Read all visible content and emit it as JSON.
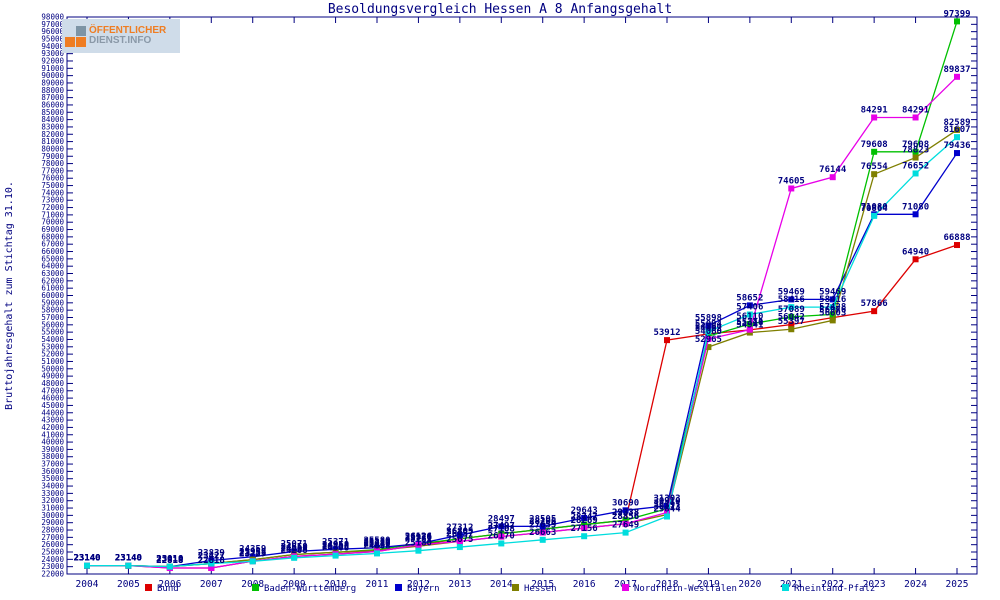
{
  "header": {
    "logo_line1": "ÖFFENTLICHER",
    "logo_line2": "DIENST.INFO"
  },
  "chart_data": {
    "type": "line",
    "title": "Besoldungsvergleich Hessen A 8 Anfangsgehalt",
    "xlabel": "",
    "ylabel": "Bruttojahresgehalt zum Stichtag 31.10.",
    "ylim": [
      22000,
      98000
    ],
    "ytick_step": 1000,
    "grid": false,
    "legend_position": "bottom",
    "point_labels": true,
    "x": [
      2004,
      2005,
      2006,
      2007,
      2008,
      2009,
      2010,
      2011,
      2012,
      2013,
      2014,
      2015,
      2016,
      2017,
      2018,
      2019,
      2020,
      2021,
      2022,
      2023,
      2024,
      2025
    ],
    "series": [
      {
        "name": "Bund",
        "color": "#dd0000",
        "values": [
          23140,
          23140,
          22818,
          22818,
          23753,
          24408,
          24708,
          25080,
          25976,
          26805,
          27497,
          28106,
          28747,
          29338,
          53912,
          54764,
          55310,
          56042,
          56976,
          57866,
          64940,
          66888
        ]
      },
      {
        "name": "Baden-Württemberg",
        "color": "#00c000",
        "values": [
          23140,
          23140,
          23010,
          23427,
          23958,
          24658,
          24958,
          25330,
          26126,
          26805,
          27497,
          28106,
          28747,
          29338,
          30910,
          54462,
          56110,
          57089,
          57428,
          79608,
          79608,
          97399
        ]
      },
      {
        "name": "Bayern",
        "color": "#0000cc",
        "values": [
          23140,
          23140,
          23010,
          23839,
          24359,
          25071,
          25371,
          25580,
          26126,
          27312,
          28497,
          28505,
          29643,
          30690,
          31303,
          55898,
          58652,
          59469,
          59469,
          71080,
          71080,
          79436
        ]
      },
      {
        "name": "Hessen",
        "color": "#7f7f00",
        "values": [
          23140,
          23140,
          23010,
          23427,
          23958,
          24658,
          24958,
          25217,
          25781,
          26457,
          27108,
          27659,
          28269,
          28856,
          30113,
          52965,
          54941,
          55397,
          56603,
          76554,
          78823,
          82589
        ]
      },
      {
        "name": "Nordrhein-Westfalen",
        "color": "#e800e8",
        "values": [
          23140,
          23140,
          22818,
          22818,
          23753,
          24408,
          24708,
          25080,
          25976,
          26457,
          27108,
          27659,
          28269,
          28856,
          30397,
          54060,
          55341,
          74605,
          76144,
          84291,
          84291,
          89837
        ]
      },
      {
        "name": "Rheinland-Pfalz",
        "color": "#00dddd",
        "values": [
          23140,
          23140,
          23010,
          23427,
          23727,
          24208,
          24508,
          24808,
          25180,
          25675,
          26170,
          26663,
          27156,
          27649,
          29844,
          55094,
          57406,
          58416,
          58416,
          70864,
          76652,
          81607
        ]
      }
    ]
  },
  "colors": {
    "axis": "#000080",
    "tick_text": "#000080",
    "point_label_text": "#000080",
    "background": "#ffffff"
  }
}
